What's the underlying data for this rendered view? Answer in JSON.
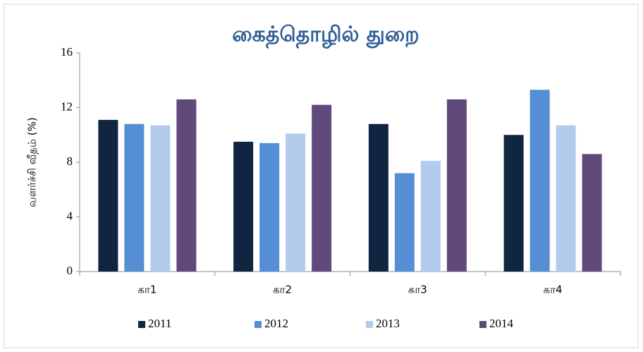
{
  "chart_data": {
    "type": "bar",
    "title": "கைத்தொழில் துறை",
    "y_label": "வளர்ச்சி வீதம் (%)",
    "categories": [
      "கா1",
      "கா2",
      "கா3",
      "கா4"
    ],
    "series": [
      {
        "name": "2011",
        "color": "#10253f",
        "values": [
          11.1,
          9.5,
          10.8,
          10.0
        ]
      },
      {
        "name": "2012",
        "color": "#558ed5",
        "values": [
          10.8,
          9.4,
          7.2,
          13.3
        ]
      },
      {
        "name": "2013",
        "color": "#b3cbec",
        "values": [
          10.7,
          10.1,
          8.1,
          10.7
        ]
      },
      {
        "name": "2014",
        "color": "#604a7b",
        "values": [
          12.6,
          12.2,
          12.6,
          8.6
        ]
      }
    ],
    "ylim": [
      0,
      16
    ],
    "yticks": [
      0,
      4,
      8,
      12,
      16
    ],
    "grid": false,
    "legend": "bottom"
  }
}
